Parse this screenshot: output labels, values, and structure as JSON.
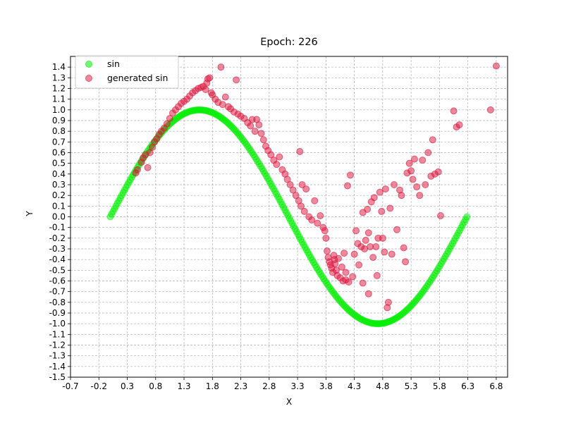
{
  "chart_data": {
    "type": "scatter",
    "title": "Epoch: 226",
    "xlabel": "X",
    "ylabel": "Y",
    "xlim": [
      -0.7,
      7.0
    ],
    "ylim": [
      -1.5,
      1.5
    ],
    "xticks": [
      -0.7,
      -0.2,
      0.3,
      0.8,
      1.3,
      1.8,
      2.3,
      2.8,
      3.3,
      3.8,
      4.3,
      4.8,
      5.3,
      5.8,
      6.3,
      6.8
    ],
    "xtick_labels": [
      "-0.7",
      "-0.2",
      "0.3",
      "0.8",
      "1.3",
      "1.8",
      "2.3",
      "2.8",
      "3.3",
      "3.8",
      "4.3",
      "4.8",
      "5.3",
      "5.8",
      "6.3",
      "6.8"
    ],
    "yticks": [
      -1.5,
      -1.4,
      -1.3,
      -1.2,
      -1.1,
      -1.0,
      -0.9,
      -0.8,
      -0.7,
      -0.6,
      -0.5,
      -0.4,
      -0.3,
      -0.2,
      -0.1,
      0.0,
      0.1,
      0.2,
      0.3,
      0.4,
      0.5,
      0.6,
      0.7,
      0.8,
      0.9,
      1.0,
      1.1,
      1.2,
      1.3,
      1.4
    ],
    "ytick_labels": [
      "-1.5",
      "-1.4",
      "-1.3",
      "-1.2",
      "-1.1",
      "-1.0",
      "-0.9",
      "-0.8",
      "-0.7",
      "-0.6",
      "-0.5",
      "-0.4",
      "-0.3",
      "-0.2",
      "-0.1",
      "0.0",
      "0.1",
      "0.2",
      "0.3",
      "0.4",
      "0.5",
      "0.6",
      "0.7",
      "0.8",
      "0.9",
      "1.0",
      "1.1",
      "1.2",
      "1.3",
      "1.4"
    ],
    "grid": true,
    "legend_position": "top-left",
    "series": [
      {
        "name": "sin",
        "color": "#00ee00",
        "function": "sin",
        "x_range": [
          0.0,
          6.2832
        ],
        "n_points": 250
      },
      {
        "name": "generated sin",
        "color": "#dc143c",
        "points": [
          [
            0.45,
            0.41
          ],
          [
            0.48,
            0.44
          ],
          [
            0.55,
            0.51
          ],
          [
            0.58,
            0.55
          ],
          [
            0.62,
            0.58
          ],
          [
            0.66,
            0.46
          ],
          [
            0.7,
            0.6
          ],
          [
            0.74,
            0.65
          ],
          [
            0.78,
            0.7
          ],
          [
            0.82,
            0.73
          ],
          [
            0.86,
            0.77
          ],
          [
            0.9,
            0.8
          ],
          [
            0.95,
            0.83
          ],
          [
            1.0,
            0.87
          ],
          [
            1.05,
            0.92
          ],
          [
            1.1,
            0.97
          ],
          [
            1.15,
            1.0
          ],
          [
            1.2,
            1.03
          ],
          [
            1.25,
            1.06
          ],
          [
            1.3,
            1.08
          ],
          [
            1.35,
            1.1
          ],
          [
            1.4,
            1.13
          ],
          [
            1.45,
            1.16
          ],
          [
            1.5,
            1.18
          ],
          [
            1.55,
            1.2
          ],
          [
            1.6,
            1.21
          ],
          [
            1.64,
            1.22
          ],
          [
            1.68,
            1.19
          ],
          [
            1.7,
            1.25
          ],
          [
            1.72,
            1.29
          ],
          [
            1.75,
            1.3
          ],
          [
            1.78,
            1.16
          ],
          [
            1.8,
            1.14
          ],
          [
            1.85,
            1.1
          ],
          [
            1.9,
            1.07
          ],
          [
            1.95,
            1.4
          ],
          [
            1.98,
            1.05
          ],
          [
            2.03,
            1.12
          ],
          [
            2.08,
            1.03
          ],
          [
            2.12,
            1.01
          ],
          [
            2.18,
            0.98
          ],
          [
            2.22,
            1.28
          ],
          [
            2.25,
            0.96
          ],
          [
            2.3,
            0.94
          ],
          [
            2.36,
            0.92
          ],
          [
            2.42,
            0.88
          ],
          [
            2.47,
            0.85
          ],
          [
            2.5,
            0.91
          ],
          [
            2.55,
            0.8
          ],
          [
            2.58,
            0.91
          ],
          [
            2.62,
            0.86
          ],
          [
            2.66,
            0.78
          ],
          [
            2.7,
            0.72
          ],
          [
            2.74,
            0.66
          ],
          [
            2.78,
            0.62
          ],
          [
            2.83,
            0.58
          ],
          [
            2.88,
            0.53
          ],
          [
            2.93,
            0.49
          ],
          [
            2.98,
            0.56
          ],
          [
            3.03,
            0.44
          ],
          [
            3.08,
            0.4
          ],
          [
            3.12,
            0.35
          ],
          [
            3.17,
            0.3
          ],
          [
            3.22,
            0.25
          ],
          [
            3.27,
            0.2
          ],
          [
            3.32,
            0.15
          ],
          [
            3.36,
            0.1
          ],
          [
            3.34,
            0.61
          ],
          [
            3.38,
            0.3
          ],
          [
            3.42,
            0.05
          ],
          [
            3.45,
            0.26
          ],
          [
            3.5,
            0.0
          ],
          [
            3.55,
            -0.03
          ],
          [
            3.6,
            0.15
          ],
          [
            3.65,
            -0.06
          ],
          [
            3.7,
            0.01
          ],
          [
            3.75,
            -0.1
          ],
          [
            3.78,
            -0.13
          ],
          [
            3.8,
            -0.2
          ],
          [
            3.82,
            -0.32
          ],
          [
            3.84,
            -0.38
          ],
          [
            3.86,
            -0.42
          ],
          [
            3.88,
            -0.45
          ],
          [
            3.9,
            -0.48
          ],
          [
            3.92,
            -0.52
          ],
          [
            3.94,
            -0.36
          ],
          [
            3.96,
            -0.44
          ],
          [
            3.98,
            -0.5
          ],
          [
            4.0,
            -0.55
          ],
          [
            4.02,
            -0.39
          ],
          [
            4.05,
            -0.57
          ],
          [
            4.08,
            -0.47
          ],
          [
            4.1,
            -0.6
          ],
          [
            4.12,
            -0.34
          ],
          [
            4.15,
            -0.59
          ],
          [
            4.18,
            0.29
          ],
          [
            4.2,
            -0.61
          ],
          [
            4.23,
            0.39
          ],
          [
            4.27,
            -0.56
          ],
          [
            4.3,
            -0.35
          ],
          [
            4.33,
            -0.13
          ],
          [
            4.36,
            -0.25
          ],
          [
            4.38,
            -0.45
          ],
          [
            4.42,
            -0.28
          ],
          [
            4.45,
            0.04
          ],
          [
            4.48,
            -0.3
          ],
          [
            4.5,
            -0.22
          ],
          [
            4.53,
            0.07
          ],
          [
            4.55,
            -0.15
          ],
          [
            4.58,
            -0.28
          ],
          [
            4.6,
            0.14
          ],
          [
            4.63,
            -0.38
          ],
          [
            4.65,
            0.18
          ],
          [
            4.68,
            -0.28
          ],
          [
            4.7,
            -0.55
          ],
          [
            4.72,
            -0.2
          ],
          [
            4.75,
            0.23
          ],
          [
            4.78,
            0.05
          ],
          [
            4.8,
            -0.2
          ],
          [
            4.83,
            -0.33
          ],
          [
            4.85,
            0.26
          ],
          [
            4.88,
            -0.85
          ],
          [
            4.9,
            -0.8
          ],
          [
            4.93,
            0.08
          ],
          [
            4.96,
            -0.35
          ],
          [
            5.0,
            0.3
          ],
          [
            5.05,
            -0.12
          ],
          [
            5.1,
            0.25
          ],
          [
            5.13,
            0.2
          ],
          [
            5.17,
            -0.29
          ],
          [
            5.2,
            -0.42
          ],
          [
            5.23,
            0.41
          ],
          [
            5.27,
            0.5
          ],
          [
            5.3,
            0.43
          ],
          [
            5.33,
            0.35
          ],
          [
            5.36,
            0.54
          ],
          [
            5.4,
            0.28
          ],
          [
            5.45,
            0.2
          ],
          [
            5.5,
            0.53
          ],
          [
            5.55,
            0.3
          ],
          [
            5.6,
            0.6
          ],
          [
            5.65,
            0.38
          ],
          [
            5.68,
            0.72
          ],
          [
            5.72,
            0.4
          ],
          [
            5.78,
            0.42
          ],
          [
            5.82,
            0.01
          ],
          [
            6.05,
            0.99
          ],
          [
            6.1,
            0.84
          ],
          [
            6.15,
            0.86
          ],
          [
            6.7,
            1.0
          ],
          [
            6.8,
            1.41
          ],
          [
            4.45,
            -0.62
          ],
          [
            4.55,
            -0.72
          ],
          [
            4.15,
            -0.52
          ],
          [
            3.95,
            -0.4
          ]
        ]
      }
    ]
  },
  "legend": {
    "items": [
      {
        "label": "sin",
        "color": "#00ee00"
      },
      {
        "label": "generated sin",
        "color": "#dc143c"
      }
    ]
  }
}
